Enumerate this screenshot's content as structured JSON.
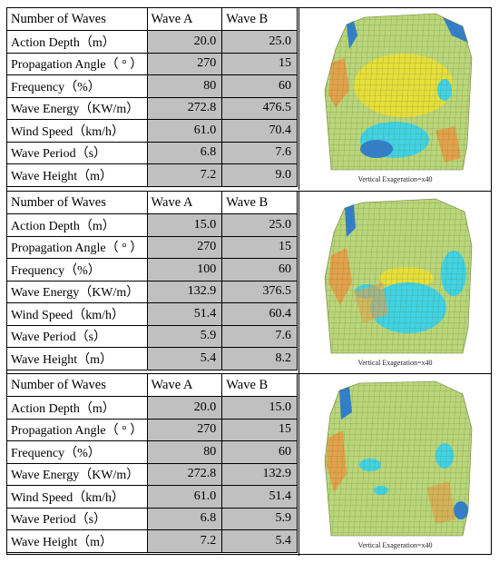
{
  "blocks": [
    {
      "header": [
        "Number of Waves",
        "Wave  A",
        "Wave B"
      ],
      "rows": [
        {
          "label": "Action Depth（m）",
          "a": "20.0",
          "b": "25.0"
        },
        {
          "label": "Propagation Angle（ ° ）",
          "a": "270",
          "b": "15"
        },
        {
          "label": "Frequency（%）",
          "a": "80",
          "b": "60"
        },
        {
          "label": "Wave Energy（KW/m）",
          "a": "272.8",
          "b": "476.5"
        },
        {
          "label": "Wind Speed（km/h）",
          "a": "61.0",
          "b": "70.4"
        },
        {
          "label": "Wave  Period（s）",
          "a": "6.8",
          "b": "7.6"
        },
        {
          "label": "Wave Height（m）",
          "a": "7.2",
          "b": "9.0"
        }
      ],
      "caption": "Vertical Exageration=x40"
    },
    {
      "header": [
        "Number of Waves",
        "Wave  A",
        "Wave B"
      ],
      "rows": [
        {
          "label": "Action Depth（m）",
          "a": "15.0",
          "b": "25.0"
        },
        {
          "label": "Propagation Angle（ ° ）",
          "a": "270",
          "b": "15"
        },
        {
          "label": "Frequency（%）",
          "a": "100",
          "b": "60"
        },
        {
          "label": "Wave Energy（KW/m）",
          "a": "132.9",
          "b": "376.5"
        },
        {
          "label": "Wind Speed（km/h）",
          "a": "51.4",
          "b": "60.4"
        },
        {
          "label": "Wave  Period（s）",
          "a": "5.9",
          "b": "7.6"
        },
        {
          "label": "Wave Height（m）",
          "a": "5.4",
          "b": "8.2"
        }
      ],
      "caption": "Vertical Exageration=x40"
    },
    {
      "header": [
        "Number of Waves",
        "Wave  A",
        "Wave B"
      ],
      "rows": [
        {
          "label": "Action Depth（m）",
          "a": "20.0",
          "b": "15.0"
        },
        {
          "label": "Propagation Angle（ ° ）",
          "a": "270",
          "b": "15"
        },
        {
          "label": "Frequency（%）",
          "a": "80",
          "b": "60"
        },
        {
          "label": "Wave Energy（KW/m）",
          "a": "272.8",
          "b": "132.9"
        },
        {
          "label": "Wind Speed（km/h）",
          "a": "61.0",
          "b": "51.4"
        },
        {
          "label": "Wave  Period（s）",
          "a": "6.8",
          "b": "5.9"
        },
        {
          "label": "Wave Height（m）",
          "a": "7.2",
          "b": "5.4"
        }
      ],
      "caption": "Vertical Exageration=x40"
    }
  ],
  "colors": {
    "value_cell_bg": "#c0c0c0",
    "terrain_green": "#b9d67a",
    "terrain_yellow": "#e7df3a",
    "terrain_cyan": "#3fd3e6",
    "terrain_blue": "#2f7fd0",
    "terrain_orange": "#e3a14a"
  }
}
